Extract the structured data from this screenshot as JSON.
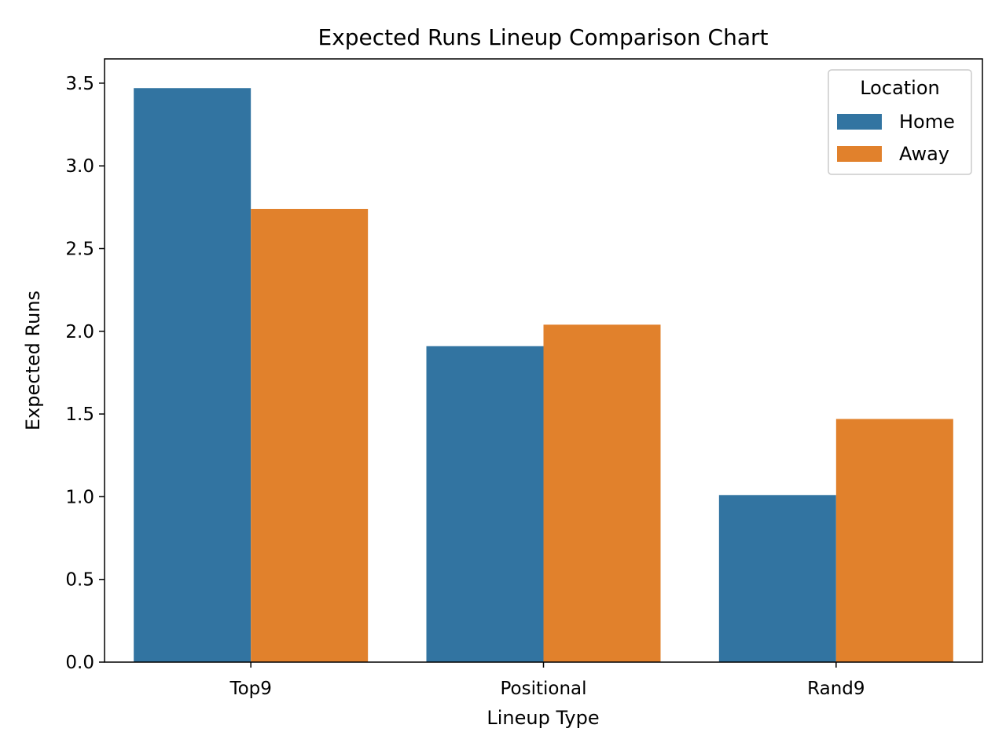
{
  "chart_data": {
    "type": "bar",
    "title": "Expected Runs Lineup Comparison Chart",
    "xlabel": "Lineup Type",
    "ylabel": "Expected Runs",
    "categories": [
      "Top9",
      "Positional",
      "Rand9"
    ],
    "series": [
      {
        "name": "Home",
        "color": "#3274a1",
        "values": [
          3.47,
          1.91,
          1.01
        ]
      },
      {
        "name": "Away",
        "color": "#e1812c",
        "values": [
          2.74,
          2.04,
          1.47
        ]
      }
    ],
    "ylim": [
      0,
      3.65
    ],
    "yticks": [
      "0.0",
      "0.5",
      "1.0",
      "1.5",
      "2.0",
      "2.5",
      "3.0",
      "3.5"
    ],
    "grid": false,
    "legend": {
      "title": "Location",
      "placement": "top-right"
    }
  }
}
